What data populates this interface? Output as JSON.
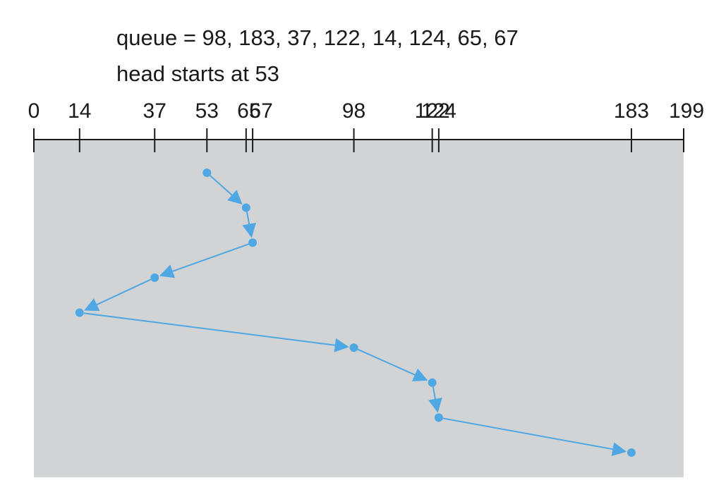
{
  "caption": {
    "queue_line": "queue = 98, 183, 37, 122, 14, 124, 65, 67",
    "head_line": "head starts at 53"
  },
  "axis": {
    "min": 0,
    "max": 199,
    "ticks": [
      0,
      14,
      37,
      53,
      65,
      67,
      98,
      122,
      124,
      183,
      199
    ],
    "tick_labels": [
      "0",
      "14",
      "37",
      "53",
      "65",
      "67",
      "98",
      "122",
      "124",
      "183",
      "199"
    ]
  },
  "head_start": 53,
  "service_order": [
    53,
    65,
    67,
    37,
    14,
    98,
    122,
    124,
    183
  ],
  "colors": {
    "panel": "#d1d3d4",
    "path": "#4fa7e3",
    "axis": "#1a1a1a"
  }
}
